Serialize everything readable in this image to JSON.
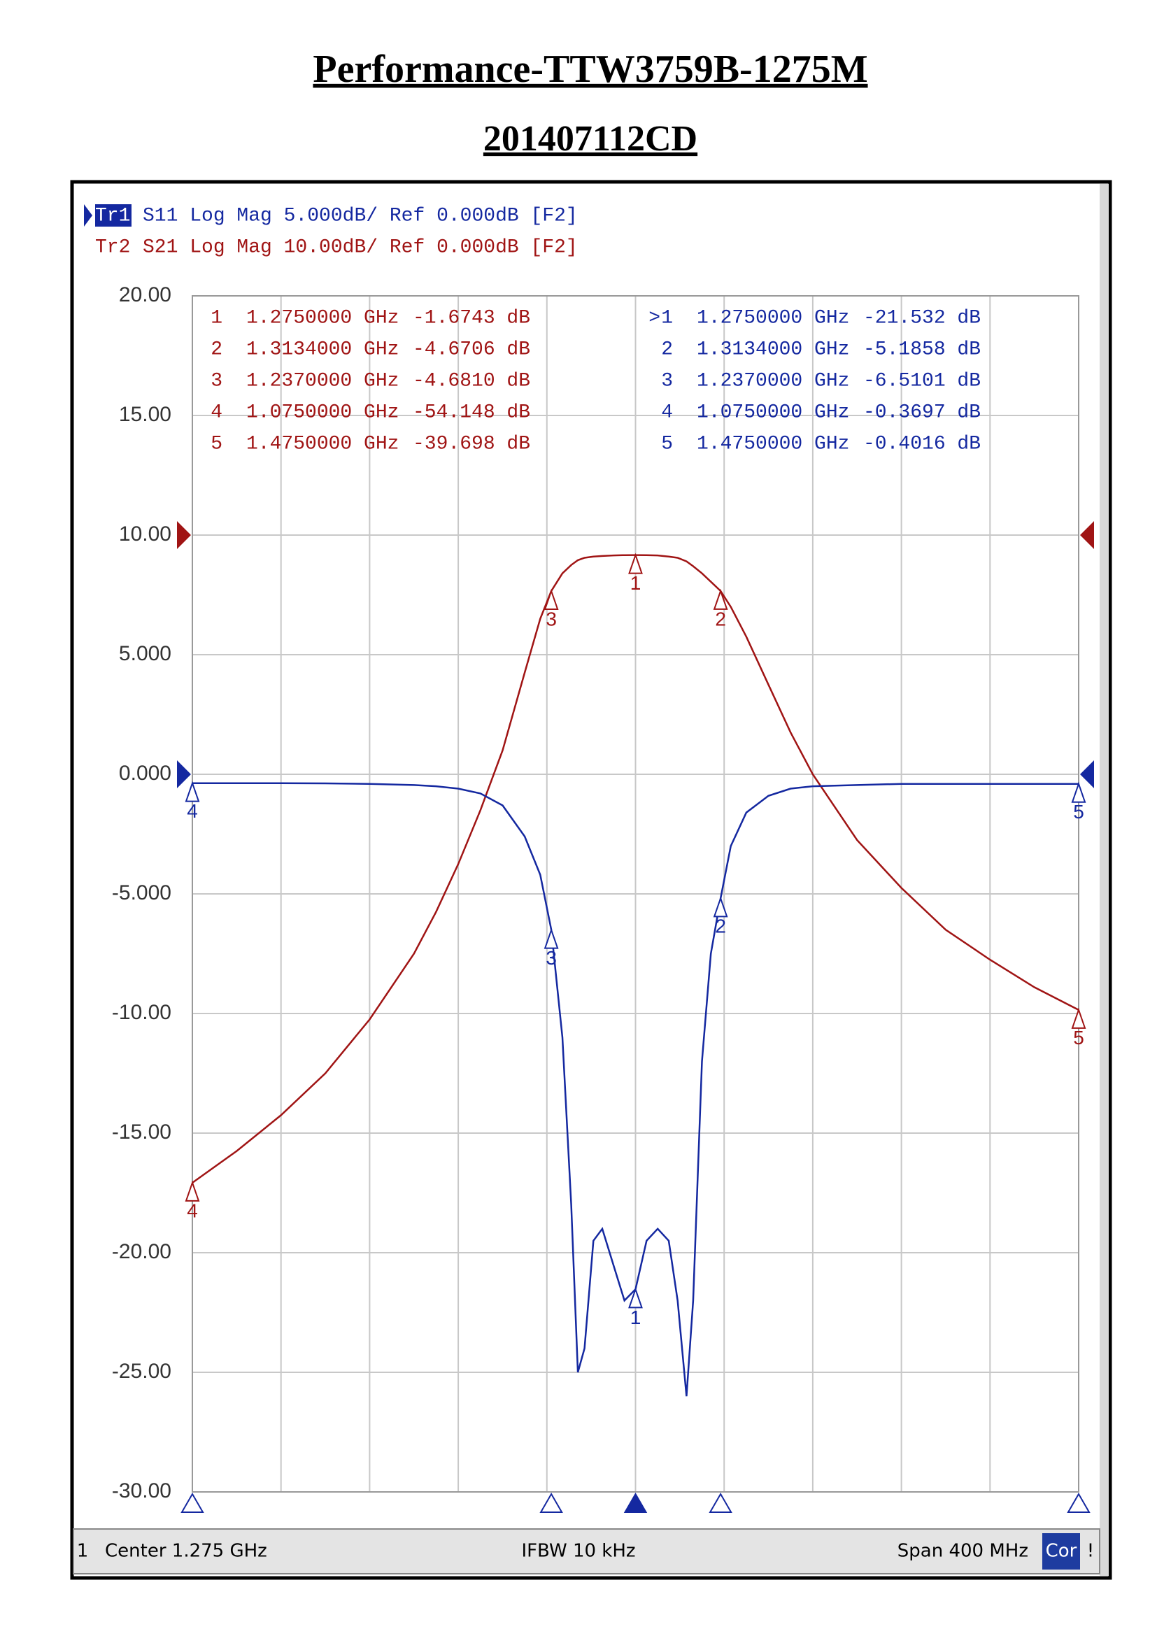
{
  "header": {
    "title": "Performance-TTW3759B-1275M",
    "subtitle": "201407112CD"
  },
  "chart_data": {
    "type": "line",
    "x": [
      1.075,
      1.095,
      1.115,
      1.135,
      1.155,
      1.175,
      1.185,
      1.195,
      1.205,
      1.215,
      1.225,
      1.232,
      1.237,
      1.242,
      1.246,
      1.249,
      1.252,
      1.256,
      1.26,
      1.265,
      1.27,
      1.275,
      1.28,
      1.285,
      1.29,
      1.294,
      1.298,
      1.301,
      1.305,
      1.309,
      1.3134,
      1.318,
      1.325,
      1.335,
      1.345,
      1.355,
      1.375,
      1.395,
      1.415,
      1.435,
      1.455,
      1.475
    ],
    "xlim": [
      1.075,
      1.475
    ],
    "xticks": [
      1.075,
      1.115,
      1.155,
      1.195,
      1.235,
      1.275,
      1.315,
      1.355,
      1.395,
      1.435,
      1.475
    ],
    "ylim": [
      -30,
      20
    ],
    "yticks": [
      {
        "value": 20,
        "label": "20.00"
      },
      {
        "value": 15,
        "label": "15.00"
      },
      {
        "value": 10,
        "label": "10.00"
      },
      {
        "value": 5,
        "label": "5.000"
      },
      {
        "value": 0,
        "label": "0.000"
      },
      {
        "value": -5,
        "label": "-5.000"
      },
      {
        "value": -10,
        "label": "-10.00"
      },
      {
        "value": -15,
        "label": "-15.00"
      },
      {
        "value": -20,
        "label": "-20.00"
      },
      {
        "value": -25,
        "label": "-25.00"
      },
      {
        "value": -30,
        "label": "-30.00"
      }
    ],
    "y2lim": [
      -80,
      20
    ],
    "grid": true,
    "series": [
      {
        "name": "Tr1",
        "label": "S11 Log Mag 5.000dB/ Ref 0.000dB [F2]",
        "color": "#1428a0",
        "active_prefix": ">",
        "values": [
          -0.37,
          -0.37,
          -0.37,
          -0.38,
          -0.4,
          -0.45,
          -0.5,
          -0.6,
          -0.8,
          -1.3,
          -2.6,
          -4.2,
          -6.5,
          -11,
          -18,
          -25,
          -24,
          -19.5,
          -19,
          -20.5,
          -22,
          -21.53,
          -19.5,
          -19,
          -19.5,
          -22,
          -26,
          -22,
          -12,
          -7.5,
          -5.19,
          -3,
          -1.6,
          -0.9,
          -0.6,
          -0.5,
          -0.45,
          -0.4,
          -0.4,
          -0.4,
          -0.4,
          -0.4
        ],
        "markers": [
          {
            "id": "1",
            "x": 1.275,
            "x_label": "1.2750000 GHz",
            "y": -21.532,
            "y_label": "-21.532 dB"
          },
          {
            "id": "2",
            "x": 1.3134,
            "x_label": "1.3134000 GHz",
            "y": -5.1858,
            "y_label": "-5.1858 dB"
          },
          {
            "id": "3",
            "x": 1.237,
            "x_label": "1.2370000 GHz",
            "y": -6.5101,
            "y_label": "-6.5101 dB"
          },
          {
            "id": "4",
            "x": 1.075,
            "x_label": "1.0750000 GHz",
            "y": -0.3697,
            "y_label": "-0.3697 dB"
          },
          {
            "id": "5",
            "x": 1.475,
            "x_label": "1.4750000 GHz",
            "y": -0.4016,
            "y_label": "-0.4016 dB"
          }
        ]
      },
      {
        "name": "Tr2",
        "label": "S21 Log Mag 10.00dB/ Ref 0.000dB [F2]",
        "color": "#a01414",
        "axis": "y2",
        "values": [
          -54.15,
          -51.5,
          -48.5,
          -45,
          -40.5,
          -35,
          -31.5,
          -27.5,
          -23,
          -18,
          -11.5,
          -7,
          -4.68,
          -3.2,
          -2.5,
          -2.1,
          -1.9,
          -1.8,
          -1.75,
          -1.7,
          -1.68,
          -1.67,
          -1.68,
          -1.7,
          -1.8,
          -1.9,
          -2.2,
          -2.6,
          -3.2,
          -3.9,
          -4.67,
          -6,
          -8.5,
          -12.5,
          -16.5,
          -20,
          -25.5,
          -29.5,
          -33,
          -35.5,
          -37.8,
          -39.7
        ],
        "markers": [
          {
            "id": "1",
            "x": 1.275,
            "x_label": "1.2750000 GHz",
            "y": -1.6743,
            "y_label": "-1.6743 dB"
          },
          {
            "id": "2",
            "x": 1.3134,
            "x_label": "1.3134000 GHz",
            "y": -4.6706,
            "y_label": "-4.6706 dB"
          },
          {
            "id": "3",
            "x": 1.237,
            "x_label": "1.2370000 GHz",
            "y": -4.681,
            "y_label": "-4.6810 dB"
          },
          {
            "id": "4",
            "x": 1.075,
            "x_label": "1.0750000 GHz",
            "y": -54.148,
            "y_label": "-54.148 dB"
          },
          {
            "id": "5",
            "x": 1.475,
            "x_label": "1.4750000 GHz",
            "y": -39.698,
            "y_label": "-39.698 dB"
          }
        ]
      }
    ]
  },
  "footer": {
    "channel": "1",
    "center": "Center 1.275 GHz",
    "ifbw": "IFBW 10 kHz",
    "span": "Span 400 MHz",
    "cor": "Cor",
    "status": "!"
  }
}
